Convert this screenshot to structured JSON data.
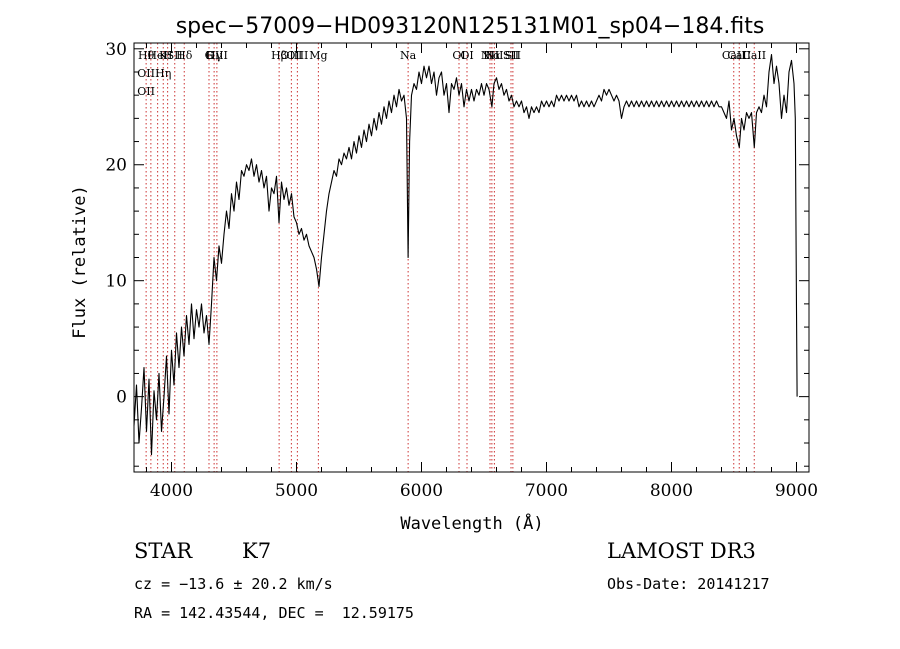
{
  "chart_data": {
    "type": "line",
    "title": "spec−57009−HD093120N125131M01_sp04−184.fits",
    "xlabel": "Wavelength (Å)",
    "ylabel": "Flux (relative)",
    "xlim": [
      3700,
      9100
    ],
    "ylim": [
      -6.5,
      30.5
    ],
    "xticks": [
      4000,
      5000,
      6000,
      7000,
      8000,
      9000
    ],
    "yticks": [
      0,
      10,
      20,
      30
    ],
    "grid": false,
    "series": [
      {
        "points": [
          [
            3700,
            -2.5
          ],
          [
            3720,
            1.0
          ],
          [
            3740,
            -4.0
          ],
          [
            3760,
            -1.0
          ],
          [
            3780,
            2.5
          ],
          [
            3800,
            -3.0
          ],
          [
            3820,
            1.5
          ],
          [
            3840,
            -5.0
          ],
          [
            3860,
            0.5
          ],
          [
            3880,
            -2.0
          ],
          [
            3900,
            2.0
          ],
          [
            3920,
            -3.0
          ],
          [
            3940,
            0.0
          ],
          [
            3960,
            3.5
          ],
          [
            3980,
            -1.5
          ],
          [
            4000,
            4.0
          ],
          [
            4020,
            1.0
          ],
          [
            4040,
            5.5
          ],
          [
            4060,
            2.5
          ],
          [
            4080,
            6.0
          ],
          [
            4100,
            3.5
          ],
          [
            4120,
            7.0
          ],
          [
            4140,
            4.5
          ],
          [
            4160,
            8.0
          ],
          [
            4180,
            5.0
          ],
          [
            4200,
            7.5
          ],
          [
            4220,
            6.0
          ],
          [
            4240,
            8.0
          ],
          [
            4260,
            5.5
          ],
          [
            4280,
            7.0
          ],
          [
            4300,
            4.5
          ],
          [
            4320,
            8.0
          ],
          [
            4340,
            12.0
          ],
          [
            4360,
            10.0
          ],
          [
            4380,
            13.0
          ],
          [
            4400,
            11.5
          ],
          [
            4420,
            14.0
          ],
          [
            4440,
            16.0
          ],
          [
            4460,
            14.5
          ],
          [
            4480,
            17.5
          ],
          [
            4500,
            16.0
          ],
          [
            4520,
            18.5
          ],
          [
            4540,
            17.0
          ],
          [
            4560,
            19.5
          ],
          [
            4580,
            19.0
          ],
          [
            4600,
            20.0
          ],
          [
            4620,
            19.5
          ],
          [
            4640,
            20.5
          ],
          [
            4660,
            19.0
          ],
          [
            4680,
            20.0
          ],
          [
            4700,
            18.5
          ],
          [
            4720,
            19.5
          ],
          [
            4740,
            18.0
          ],
          [
            4760,
            19.0
          ],
          [
            4780,
            16.0
          ],
          [
            4800,
            18.0
          ],
          [
            4820,
            17.5
          ],
          [
            4840,
            19.0
          ],
          [
            4860,
            15.0
          ],
          [
            4880,
            18.5
          ],
          [
            4900,
            17.0
          ],
          [
            4920,
            18.0
          ],
          [
            4940,
            16.5
          ],
          [
            4960,
            17.5
          ],
          [
            4980,
            15.5
          ],
          [
            5000,
            15.0
          ],
          [
            5020,
            14.0
          ],
          [
            5040,
            14.5
          ],
          [
            5060,
            13.5
          ],
          [
            5080,
            14.0
          ],
          [
            5100,
            13.0
          ],
          [
            5120,
            12.5
          ],
          [
            5140,
            12.0
          ],
          [
            5160,
            11.0
          ],
          [
            5180,
            9.5
          ],
          [
            5200,
            12.0
          ],
          [
            5220,
            14.0
          ],
          [
            5240,
            16.0
          ],
          [
            5260,
            17.5
          ],
          [
            5280,
            18.5
          ],
          [
            5300,
            19.5
          ],
          [
            5320,
            19.0
          ],
          [
            5340,
            20.5
          ],
          [
            5360,
            20.0
          ],
          [
            5380,
            21.0
          ],
          [
            5400,
            20.5
          ],
          [
            5420,
            21.5
          ],
          [
            5440,
            20.5
          ],
          [
            5460,
            22.0
          ],
          [
            5480,
            21.0
          ],
          [
            5500,
            22.5
          ],
          [
            5520,
            21.5
          ],
          [
            5540,
            23.0
          ],
          [
            5560,
            22.0
          ],
          [
            5580,
            23.5
          ],
          [
            5600,
            22.5
          ],
          [
            5620,
            24.0
          ],
          [
            5640,
            23.0
          ],
          [
            5660,
            24.5
          ],
          [
            5680,
            23.5
          ],
          [
            5700,
            25.0
          ],
          [
            5720,
            24.0
          ],
          [
            5740,
            25.5
          ],
          [
            5760,
            24.5
          ],
          [
            5780,
            26.0
          ],
          [
            5800,
            25.0
          ],
          [
            5820,
            26.5
          ],
          [
            5840,
            25.5
          ],
          [
            5860,
            26.0
          ],
          [
            5880,
            24.0
          ],
          [
            5893,
            12.0
          ],
          [
            5905,
            22.0
          ],
          [
            5920,
            26.0
          ],
          [
            5940,
            27.0
          ],
          [
            5960,
            26.5
          ],
          [
            5980,
            28.0
          ],
          [
            6000,
            27.0
          ],
          [
            6020,
            28.5
          ],
          [
            6040,
            27.5
          ],
          [
            6060,
            28.5
          ],
          [
            6080,
            27.0
          ],
          [
            6100,
            28.0
          ],
          [
            6120,
            26.0
          ],
          [
            6140,
            27.5
          ],
          [
            6160,
            28.0
          ],
          [
            6180,
            26.0
          ],
          [
            6200,
            27.0
          ],
          [
            6220,
            24.5
          ],
          [
            6240,
            27.0
          ],
          [
            6260,
            26.5
          ],
          [
            6280,
            27.5
          ],
          [
            6300,
            26.0
          ],
          [
            6320,
            27.0
          ],
          [
            6340,
            25.0
          ],
          [
            6360,
            26.5
          ],
          [
            6380,
            25.5
          ],
          [
            6400,
            26.5
          ],
          [
            6420,
            25.5
          ],
          [
            6440,
            26.5
          ],
          [
            6460,
            26.0
          ],
          [
            6480,
            27.0
          ],
          [
            6500,
            26.0
          ],
          [
            6520,
            27.0
          ],
          [
            6540,
            26.5
          ],
          [
            6563,
            25.0
          ],
          [
            6580,
            27.0
          ],
          [
            6600,
            27.5
          ],
          [
            6620,
            26.5
          ],
          [
            6640,
            27.0
          ],
          [
            6660,
            26.0
          ],
          [
            6680,
            26.5
          ],
          [
            6700,
            25.5
          ],
          [
            6720,
            26.0
          ],
          [
            6740,
            25.0
          ],
          [
            6760,
            25.5
          ],
          [
            6780,
            25.0
          ],
          [
            6800,
            25.5
          ],
          [
            6820,
            24.5
          ],
          [
            6840,
            25.0
          ],
          [
            6860,
            24.0
          ],
          [
            6880,
            25.0
          ],
          [
            6900,
            24.5
          ],
          [
            6920,
            25.0
          ],
          [
            6940,
            24.5
          ],
          [
            6960,
            25.5
          ],
          [
            6980,
            25.0
          ],
          [
            7000,
            25.5
          ],
          [
            7020,
            25.0
          ],
          [
            7040,
            25.5
          ],
          [
            7060,
            25.0
          ],
          [
            7080,
            26.0
          ],
          [
            7100,
            25.5
          ],
          [
            7120,
            26.0
          ],
          [
            7140,
            25.5
          ],
          [
            7160,
            26.0
          ],
          [
            7180,
            25.5
          ],
          [
            7200,
            26.0
          ],
          [
            7220,
            25.5
          ],
          [
            7240,
            26.0
          ],
          [
            7260,
            25.0
          ],
          [
            7280,
            25.5
          ],
          [
            7300,
            25.0
          ],
          [
            7320,
            25.5
          ],
          [
            7340,
            25.0
          ],
          [
            7360,
            25.5
          ],
          [
            7380,
            25.0
          ],
          [
            7400,
            25.5
          ],
          [
            7420,
            26.0
          ],
          [
            7440,
            25.5
          ],
          [
            7460,
            26.5
          ],
          [
            7480,
            26.0
          ],
          [
            7500,
            26.5
          ],
          [
            7520,
            26.0
          ],
          [
            7540,
            25.5
          ],
          [
            7560,
            26.0
          ],
          [
            7580,
            25.5
          ],
          [
            7600,
            24.0
          ],
          [
            7620,
            25.0
          ],
          [
            7640,
            25.5
          ],
          [
            7660,
            25.0
          ],
          [
            7680,
            25.5
          ],
          [
            7700,
            25.0
          ],
          [
            7720,
            25.5
          ],
          [
            7740,
            25.0
          ],
          [
            7760,
            25.5
          ],
          [
            7780,
            25.0
          ],
          [
            7800,
            25.5
          ],
          [
            7820,
            25.0
          ],
          [
            7840,
            25.5
          ],
          [
            7860,
            25.0
          ],
          [
            7880,
            25.5
          ],
          [
            7900,
            25.0
          ],
          [
            7920,
            25.5
          ],
          [
            7940,
            25.0
          ],
          [
            7960,
            25.5
          ],
          [
            7980,
            25.0
          ],
          [
            8000,
            25.5
          ],
          [
            8020,
            25.0
          ],
          [
            8040,
            25.5
          ],
          [
            8060,
            25.0
          ],
          [
            8080,
            25.5
          ],
          [
            8100,
            25.0
          ],
          [
            8120,
            25.5
          ],
          [
            8140,
            25.0
          ],
          [
            8160,
            25.5
          ],
          [
            8180,
            25.0
          ],
          [
            8200,
            25.5
          ],
          [
            8220,
            25.0
          ],
          [
            8240,
            25.5
          ],
          [
            8260,
            25.0
          ],
          [
            8280,
            25.5
          ],
          [
            8300,
            25.0
          ],
          [
            8320,
            25.5
          ],
          [
            8340,
            25.0
          ],
          [
            8360,
            25.5
          ],
          [
            8380,
            25.0
          ],
          [
            8400,
            25.0
          ],
          [
            8420,
            24.5
          ],
          [
            8440,
            24.0
          ],
          [
            8460,
            25.5
          ],
          [
            8480,
            23.0
          ],
          [
            8500,
            24.0
          ],
          [
            8520,
            22.5
          ],
          [
            8542,
            21.5
          ],
          [
            8560,
            24.0
          ],
          [
            8580,
            23.0
          ],
          [
            8600,
            24.5
          ],
          [
            8620,
            24.0
          ],
          [
            8640,
            24.5
          ],
          [
            8662,
            21.5
          ],
          [
            8680,
            24.5
          ],
          [
            8700,
            25.0
          ],
          [
            8720,
            24.5
          ],
          [
            8740,
            26.0
          ],
          [
            8760,
            25.0
          ],
          [
            8780,
            28.0
          ],
          [
            8800,
            29.5
          ],
          [
            8820,
            27.0
          ],
          [
            8840,
            28.5
          ],
          [
            8860,
            27.0
          ],
          [
            8880,
            24.0
          ],
          [
            8900,
            26.0
          ],
          [
            8920,
            24.5
          ],
          [
            8940,
            28.0
          ],
          [
            8960,
            29.0
          ],
          [
            8980,
            27.0
          ],
          [
            8990,
            24.0
          ],
          [
            9000,
            7.5
          ],
          [
            9005,
            0.0
          ]
        ]
      }
    ],
    "line_markers": [
      {
        "x": 3797,
        "labels": [
          "Hθ",
          "OII",
          "OII"
        ]
      },
      {
        "x": 3835,
        "labels": []
      },
      {
        "x": 3889,
        "labels": [
          "HeI"
        ]
      },
      {
        "x": 3934,
        "labels": [
          "K",
          "Hη"
        ]
      },
      {
        "x": 3969,
        "labels": [
          "H"
        ]
      },
      {
        "x": 4026,
        "labels": [
          "SII"
        ]
      },
      {
        "x": 4102,
        "labels": [
          "Hδ"
        ]
      },
      {
        "x": 4300,
        "labels": [
          "G"
        ]
      },
      {
        "x": 4341,
        "labels": [
          "Hγ"
        ]
      },
      {
        "x": 4363,
        "labels": [
          "OIII"
        ]
      },
      {
        "x": 4861,
        "labels": [
          "Hβ"
        ]
      },
      {
        "x": 4959,
        "labels": [
          "OIII"
        ]
      },
      {
        "x": 5007,
        "labels": [
          "OIII"
        ]
      },
      {
        "x": 5175,
        "labels": [
          "Mg"
        ]
      },
      {
        "x": 5893,
        "labels": [
          "Na"
        ]
      },
      {
        "x": 6300,
        "labels": [
          "OI"
        ]
      },
      {
        "x": 6364,
        "labels": [
          "OI"
        ]
      },
      {
        "x": 6548,
        "labels": [
          "NII"
        ]
      },
      {
        "x": 6563,
        "labels": [
          "Hα"
        ]
      },
      {
        "x": 6583,
        "labels": [
          "NII"
        ]
      },
      {
        "x": 6716,
        "labels": [
          "SII"
        ]
      },
      {
        "x": 6731,
        "labels": [
          "SII"
        ]
      },
      {
        "x": 8498,
        "labels": [
          "CaII"
        ]
      },
      {
        "x": 8542,
        "labels": [
          "CaII"
        ]
      },
      {
        "x": 8662,
        "labels": [
          "CaII"
        ]
      }
    ]
  },
  "info": {
    "object_class": "STAR",
    "subclass": "K7",
    "survey": "LAMOST DR3",
    "redshift": "cz = −13.6 ± 20.2 km/s",
    "obs_date": "Obs-Date: 20141217",
    "coords": "RA = 142.43544, DEC =  12.59175"
  }
}
